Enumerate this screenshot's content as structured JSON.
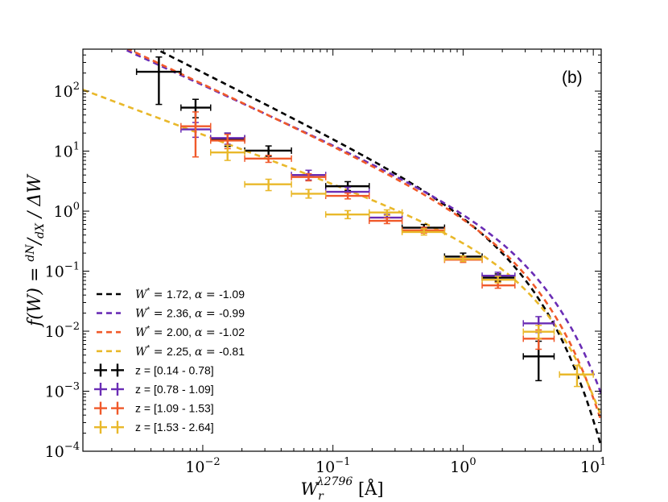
{
  "chart_data": {
    "type": "scatter",
    "panel_label": "(b)",
    "xscale": "log",
    "yscale": "log",
    "xlim": [
      0.0012,
      11.5
    ],
    "ylim": [
      0.0001,
      500
    ],
    "xlabel": "W_r^{λ2796} [Å]",
    "ylabel": "f(W) = (dN/dX) / ΔW",
    "xticks": [
      {
        "value": 0.01,
        "base": "10",
        "exp": "−2"
      },
      {
        "value": 0.1,
        "base": "10",
        "exp": "−1"
      },
      {
        "value": 1,
        "base": "10",
        "exp": "0"
      },
      {
        "value": 10,
        "base": "10",
        "exp": "1"
      }
    ],
    "yticks": [
      {
        "value": 0.0001,
        "base": "10",
        "exp": "−4"
      },
      {
        "value": 0.001,
        "base": "10",
        "exp": "−3"
      },
      {
        "value": 0.01,
        "base": "10",
        "exp": "−2"
      },
      {
        "value": 0.1,
        "base": "10",
        "exp": "−1"
      },
      {
        "value": 1,
        "base": "10",
        "exp": "0"
      },
      {
        "value": 10,
        "base": "10",
        "exp": "1"
      },
      {
        "value": 100,
        "base": "10",
        "exp": "2"
      }
    ],
    "fits": [
      {
        "name": "W* = 1.72, α = -1.09",
        "wstar_value": "1.72",
        "alpha_value": "-1.09",
        "wstar": 1.72,
        "alpha": -1.09,
        "norm": 0.75,
        "color": "#000000"
      },
      {
        "name": "W* = 2.36, α = -0.99",
        "wstar_value": "2.36",
        "alpha_value": "-0.99",
        "wstar": 2.36,
        "alpha": -0.99,
        "norm": 0.565,
        "color": "#6a2db5"
      },
      {
        "name": "W* = 2.00, α = -1.02",
        "wstar_value": "2.00",
        "alpha_value": "-1.02",
        "wstar": 2.0,
        "alpha": -1.02,
        "norm": 0.59,
        "color": "#f0592a"
      },
      {
        "name": "W* = 2.25, α = -0.81",
        "wstar_value": "2.25",
        "alpha_value": "-0.81",
        "wstar": 2.25,
        "alpha": -0.81,
        "norm": 0.235,
        "color": "#e9b82a"
      }
    ],
    "series": [
      {
        "name": "z = [0.14 - 0.78]",
        "color": "#000000",
        "points": [
          {
            "x": 0.0046,
            "xlo": 0.0031,
            "xhi": 0.0068,
            "y": 210,
            "ylo": 60,
            "yhi": 370
          },
          {
            "x": 0.0088,
            "xlo": 0.0068,
            "xhi": 0.0115,
            "y": 53,
            "ylo": 36,
            "yhi": 73
          },
          {
            "x": 0.0155,
            "xlo": 0.0115,
            "xhi": 0.021,
            "y": 16,
            "ylo": 12,
            "yhi": 20
          },
          {
            "x": 0.032,
            "xlo": 0.021,
            "xhi": 0.048,
            "y": 10.2,
            "ylo": 8.2,
            "yhi": 12.2
          },
          {
            "x": 0.13,
            "xlo": 0.088,
            "xhi": 0.19,
            "y": 2.6,
            "ylo": 2.2,
            "yhi": 3.1
          },
          {
            "x": 0.5,
            "xlo": 0.34,
            "xhi": 0.72,
            "y": 0.53,
            "ylo": 0.46,
            "yhi": 0.6
          },
          {
            "x": 1.0,
            "xlo": 0.72,
            "xhi": 1.4,
            "y": 0.175,
            "ylo": 0.155,
            "yhi": 0.2
          },
          {
            "x": 1.85,
            "xlo": 1.4,
            "xhi": 2.5,
            "y": 0.078,
            "ylo": 0.068,
            "yhi": 0.09
          },
          {
            "x": 3.8,
            "xlo": 2.9,
            "xhi": 5.0,
            "y": 0.0038,
            "ylo": 0.0015,
            "yhi": 0.0068
          }
        ]
      },
      {
        "name": "z = [0.78 - 1.09]",
        "color": "#6a2db5",
        "points": [
          {
            "x": 0.0088,
            "xlo": 0.0068,
            "xhi": 0.0115,
            "y": 23,
            "ylo": 17,
            "yhi": 30
          },
          {
            "x": 0.0155,
            "xlo": 0.0115,
            "xhi": 0.021,
            "y": 16.5,
            "ylo": 13,
            "yhi": 20
          },
          {
            "x": 0.065,
            "xlo": 0.048,
            "xhi": 0.088,
            "y": 4.0,
            "ylo": 3.3,
            "yhi": 4.8
          },
          {
            "x": 0.13,
            "xlo": 0.088,
            "xhi": 0.19,
            "y": 2.1,
            "ylo": 1.8,
            "yhi": 2.5
          },
          {
            "x": 0.26,
            "xlo": 0.19,
            "xhi": 0.34,
            "y": 0.78,
            "ylo": 0.7,
            "yhi": 0.88
          },
          {
            "x": 1.85,
            "xlo": 1.4,
            "xhi": 2.5,
            "y": 0.084,
            "ylo": 0.074,
            "yhi": 0.096
          },
          {
            "x": 3.8,
            "xlo": 2.9,
            "xhi": 5.0,
            "y": 0.0135,
            "ylo": 0.0095,
            "yhi": 0.0175
          }
        ]
      },
      {
        "name": "z = [1.09 - 1.53]",
        "color": "#f0592a",
        "points": [
          {
            "x": 0.0088,
            "xlo": 0.0068,
            "xhi": 0.0115,
            "y": 26,
            "ylo": 8,
            "yhi": 45
          },
          {
            "x": 0.0155,
            "xlo": 0.0115,
            "xhi": 0.021,
            "y": 15,
            "ylo": 11,
            "yhi": 19
          },
          {
            "x": 0.032,
            "xlo": 0.021,
            "xhi": 0.048,
            "y": 7.5,
            "ylo": 6.5,
            "yhi": 8.5
          },
          {
            "x": 0.065,
            "xlo": 0.048,
            "xhi": 0.088,
            "y": 3.7,
            "ylo": 3.2,
            "yhi": 4.2
          },
          {
            "x": 0.13,
            "xlo": 0.088,
            "xhi": 0.19,
            "y": 1.8,
            "ylo": 1.6,
            "yhi": 2.0
          },
          {
            "x": 0.26,
            "xlo": 0.19,
            "xhi": 0.34,
            "y": 0.69,
            "ylo": 0.62,
            "yhi": 0.77
          },
          {
            "x": 0.5,
            "xlo": 0.34,
            "xhi": 0.72,
            "y": 0.48,
            "ylo": 0.43,
            "yhi": 0.54
          },
          {
            "x": 1.0,
            "xlo": 0.72,
            "xhi": 1.4,
            "y": 0.155,
            "ylo": 0.14,
            "yhi": 0.17
          },
          {
            "x": 1.85,
            "xlo": 1.4,
            "xhi": 2.5,
            "y": 0.058,
            "ylo": 0.052,
            "yhi": 0.065
          },
          {
            "x": 3.8,
            "xlo": 2.9,
            "xhi": 5.0,
            "y": 0.0075,
            "ylo": 0.005,
            "yhi": 0.0105
          }
        ]
      },
      {
        "name": "z = [1.53 - 2.64]",
        "color": "#e9b82a",
        "points": [
          {
            "x": 0.0155,
            "xlo": 0.0115,
            "xhi": 0.021,
            "y": 9.5,
            "ylo": 7,
            "yhi": 12.5
          },
          {
            "x": 0.032,
            "xlo": 0.021,
            "xhi": 0.048,
            "y": 2.8,
            "ylo": 2.2,
            "yhi": 3.4
          },
          {
            "x": 0.065,
            "xlo": 0.048,
            "xhi": 0.088,
            "y": 1.95,
            "ylo": 1.65,
            "yhi": 2.3
          },
          {
            "x": 0.13,
            "xlo": 0.088,
            "xhi": 0.19,
            "y": 0.88,
            "ylo": 0.75,
            "yhi": 1.02
          },
          {
            "x": 0.26,
            "xlo": 0.19,
            "xhi": 0.34,
            "y": 0.95,
            "ylo": 0.85,
            "yhi": 1.05
          },
          {
            "x": 0.5,
            "xlo": 0.34,
            "xhi": 0.72,
            "y": 0.45,
            "ylo": 0.4,
            "yhi": 0.51
          },
          {
            "x": 1.0,
            "xlo": 0.72,
            "xhi": 1.4,
            "y": 0.16,
            "ylo": 0.145,
            "yhi": 0.18
          },
          {
            "x": 1.85,
            "xlo": 1.4,
            "xhi": 2.5,
            "y": 0.072,
            "ylo": 0.064,
            "yhi": 0.082
          },
          {
            "x": 3.8,
            "xlo": 2.9,
            "xhi": 5.0,
            "y": 0.0098,
            "ylo": 0.0075,
            "yhi": 0.0125
          },
          {
            "x": 7.5,
            "xlo": 5.5,
            "xhi": 10.0,
            "y": 0.0019,
            "ylo": 0.0012,
            "yhi": 0.0027
          }
        ]
      }
    ]
  }
}
